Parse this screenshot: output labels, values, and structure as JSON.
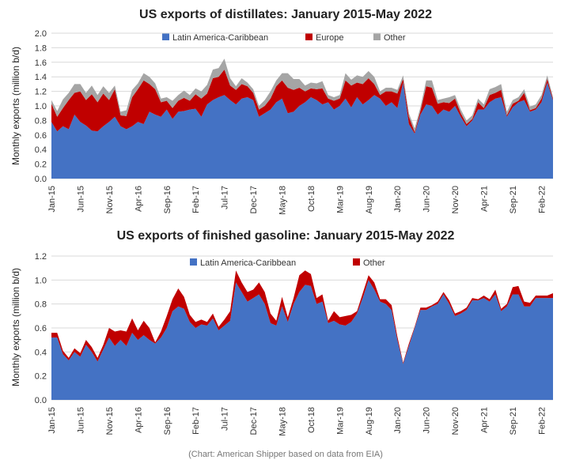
{
  "caption": "(Chart: American Shipper based on data from EIA)",
  "chart_data": [
    {
      "type": "area",
      "stacked": true,
      "title": "US exports of distillates: January 2015-May 2022",
      "ylabel": "Monthly exports (million b/d)",
      "xlabel": "",
      "ylim": [
        0,
        2.0
      ],
      "yticks": [
        "0.0",
        "0.2",
        "0.4",
        "0.6",
        "0.8",
        "1.0",
        "1.2",
        "1.4",
        "1.6",
        "1.8",
        "2.0"
      ],
      "grid": true,
      "legend_position": "top",
      "xtick_labels": [
        "Jan-15",
        "Jun-15",
        "Nov-15",
        "Apr-16",
        "Sep-16",
        "Feb-17",
        "Jul-17",
        "Dec-17",
        "May-18",
        "Oct-18",
        "Mar-19",
        "Aug-19",
        "Jan-20",
        "Jun-20",
        "Nov-20",
        "Apr-21",
        "Sep-21",
        "Feb-22"
      ],
      "x_start": "2015-01",
      "x_end": "2022-05",
      "series": [
        {
          "name": "Latin America-Caribbean",
          "color": "#4472C4",
          "values": [
            0.78,
            0.65,
            0.72,
            0.68,
            0.88,
            0.78,
            0.73,
            0.66,
            0.65,
            0.72,
            0.78,
            0.85,
            0.72,
            0.68,
            0.72,
            0.78,
            0.75,
            0.92,
            0.88,
            0.85,
            0.95,
            0.82,
            0.92,
            0.93,
            0.95,
            0.96,
            0.85,
            1.02,
            1.08,
            1.12,
            1.15,
            1.08,
            1.02,
            1.1,
            1.12,
            1.08,
            0.85,
            0.9,
            0.95,
            1.05,
            1.1,
            0.9,
            0.92,
            1.0,
            1.05,
            1.12,
            1.08,
            1.02,
            1.05,
            0.95,
            1.0,
            1.1,
            0.98,
            1.12,
            1.02,
            1.08,
            1.15,
            1.1,
            1.0,
            1.05,
            0.97,
            1.32,
            0.75,
            0.62,
            0.88,
            1.02,
            1.0,
            0.88,
            0.95,
            0.92,
            1.0,
            0.85,
            0.72,
            0.8,
            0.95,
            0.95,
            1.05,
            1.1,
            1.12,
            0.85,
            0.98,
            1.05,
            1.08,
            0.92,
            0.95,
            1.05,
            1.32,
            1.08
          ]
        },
        {
          "name": "Europe",
          "color": "#C00000",
          "values": [
            0.25,
            0.2,
            0.25,
            0.4,
            0.3,
            0.42,
            0.35,
            0.5,
            0.4,
            0.45,
            0.3,
            0.38,
            0.15,
            0.18,
            0.4,
            0.45,
            0.6,
            0.38,
            0.35,
            0.2,
            0.12,
            0.15,
            0.15,
            0.18,
            0.12,
            0.2,
            0.25,
            0.15,
            0.3,
            0.28,
            0.35,
            0.2,
            0.2,
            0.2,
            0.15,
            0.1,
            0.1,
            0.1,
            0.15,
            0.22,
            0.25,
            0.35,
            0.3,
            0.25,
            0.15,
            0.12,
            0.15,
            0.22,
            0.05,
            0.12,
            0.1,
            0.25,
            0.3,
            0.2,
            0.28,
            0.3,
            0.15,
            0.05,
            0.2,
            0.15,
            0.2,
            0.05,
            0.1,
            0.02,
            0.05,
            0.25,
            0.25,
            0.15,
            0.1,
            0.12,
            0.1,
            0.05,
            0.03,
            0.02,
            0.1,
            0.02,
            0.1,
            0.08,
            0.1,
            0.02,
            0.05,
            0.02,
            0.1,
            0.02,
            0.02,
            0.05,
            0.05,
            0.02
          ]
        },
        {
          "name": "Other",
          "color": "#A5A5A5",
          "values": [
            0.05,
            0.08,
            0.12,
            0.1,
            0.12,
            0.1,
            0.1,
            0.12,
            0.1,
            0.1,
            0.1,
            0.05,
            0.05,
            0.08,
            0.1,
            0.08,
            0.1,
            0.1,
            0.08,
            0.05,
            0.05,
            0.1,
            0.08,
            0.1,
            0.08,
            0.08,
            0.1,
            0.12,
            0.12,
            0.12,
            0.15,
            0.1,
            0.05,
            0.08,
            0.05,
            0.05,
            0.05,
            0.08,
            0.1,
            0.08,
            0.1,
            0.2,
            0.15,
            0.12,
            0.08,
            0.08,
            0.08,
            0.1,
            0.05,
            0.05,
            0.05,
            0.1,
            0.08,
            0.1,
            0.1,
            0.1,
            0.1,
            0.05,
            0.05,
            0.05,
            0.05,
            0.05,
            0.05,
            0.05,
            0.05,
            0.08,
            0.1,
            0.05,
            0.05,
            0.08,
            0.05,
            0.05,
            0.05,
            0.05,
            0.05,
            0.05,
            0.08,
            0.08,
            0.08,
            0.05,
            0.05,
            0.05,
            0.05,
            0.05,
            0.05,
            0.05,
            0.05,
            0.02
          ]
        }
      ]
    },
    {
      "type": "area",
      "stacked": true,
      "title": "US exports of finished gasoline: January 2015-May 2022",
      "ylabel": "Monthly exports (million b/d)",
      "xlabel": "",
      "ylim": [
        0,
        1.2
      ],
      "yticks": [
        "0.0",
        "0.2",
        "0.4",
        "0.6",
        "0.8",
        "1.0",
        "1.2"
      ],
      "grid": true,
      "legend_position": "top",
      "xtick_labels": [
        "Jan-15",
        "Jun-15",
        "Nov-15",
        "Apr-16",
        "Sep-16",
        "Feb-17",
        "Jul-17",
        "Dec-17",
        "May-18",
        "Oct-18",
        "Mar-19",
        "Aug-19",
        "Jan-20",
        "Jun-20",
        "Nov-20",
        "Apr-21",
        "Sep-21",
        "Feb-22"
      ],
      "x_start": "2015-01",
      "x_end": "2022-05",
      "series": [
        {
          "name": "Latin America-Caribbean",
          "color": "#4472C4",
          "values": [
            0.52,
            0.52,
            0.38,
            0.33,
            0.4,
            0.36,
            0.46,
            0.4,
            0.32,
            0.42,
            0.52,
            0.45,
            0.5,
            0.45,
            0.56,
            0.5,
            0.54,
            0.5,
            0.47,
            0.52,
            0.6,
            0.74,
            0.78,
            0.76,
            0.65,
            0.6,
            0.63,
            0.62,
            0.68,
            0.58,
            0.62,
            0.66,
            0.98,
            0.9,
            0.82,
            0.85,
            0.88,
            0.8,
            0.64,
            0.62,
            0.78,
            0.65,
            0.8,
            0.9,
            0.96,
            0.95,
            0.8,
            0.82,
            0.64,
            0.66,
            0.63,
            0.62,
            0.65,
            0.72,
            0.85,
            1.0,
            0.92,
            0.82,
            0.8,
            0.75,
            0.5,
            0.3,
            0.45,
            0.6,
            0.75,
            0.75,
            0.78,
            0.8,
            0.88,
            0.8,
            0.7,
            0.72,
            0.75,
            0.83,
            0.83,
            0.85,
            0.82,
            0.88,
            0.74,
            0.78,
            0.88,
            0.88,
            0.78,
            0.78,
            0.85,
            0.85,
            0.85,
            0.85
          ]
        },
        {
          "name": "Other",
          "color": "#C00000",
          "values": [
            0.04,
            0.04,
            0.03,
            0.02,
            0.03,
            0.03,
            0.04,
            0.04,
            0.03,
            0.04,
            0.08,
            0.12,
            0.08,
            0.12,
            0.12,
            0.08,
            0.12,
            0.1,
            0.01,
            0.05,
            0.1,
            0.1,
            0.15,
            0.1,
            0.06,
            0.05,
            0.04,
            0.03,
            0.04,
            0.03,
            0.05,
            0.08,
            0.1,
            0.08,
            0.08,
            0.07,
            0.1,
            0.1,
            0.08,
            0.04,
            0.08,
            0.04,
            0.05,
            0.14,
            0.12,
            0.1,
            0.05,
            0.06,
            0.02,
            0.08,
            0.06,
            0.08,
            0.06,
            0.02,
            0.04,
            0.04,
            0.06,
            0.02,
            0.04,
            0.04,
            0.03,
            0.01,
            0.02,
            0.01,
            0.02,
            0.02,
            0.01,
            0.02,
            0.02,
            0.03,
            0.02,
            0.02,
            0.02,
            0.02,
            0.01,
            0.02,
            0.02,
            0.04,
            0.02,
            0.02,
            0.06,
            0.07,
            0.04,
            0.03,
            0.02,
            0.02,
            0.02,
            0.04
          ]
        }
      ]
    }
  ]
}
